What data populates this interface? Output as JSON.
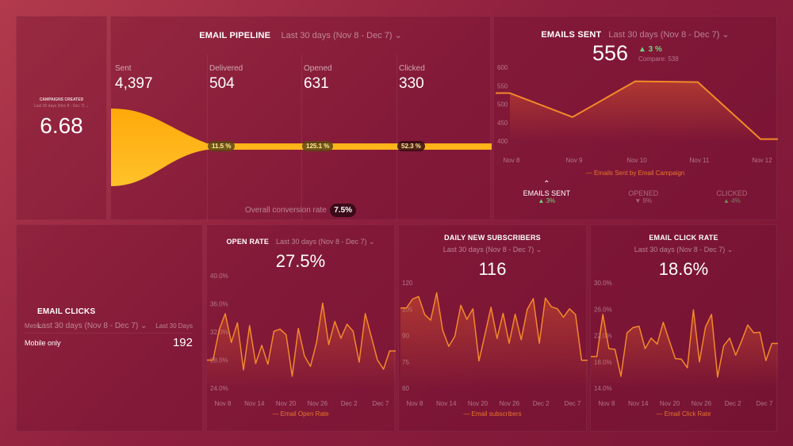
{
  "campaigns": {
    "title": "CAMPAIGNS CREATED",
    "range": "Last 30 days (Nov 8 - Dec 7) ⌄",
    "value": "6.68"
  },
  "pipeline": {
    "title": "EMAIL PIPELINE",
    "range": "Last 30 days (Nov 8 - Dec 7) ⌄",
    "stages": [
      {
        "label": "Sent",
        "value": "4,397"
      },
      {
        "label": "Delivered",
        "value": "504",
        "rate": "11.5 %"
      },
      {
        "label": "Opened",
        "value": "631",
        "rate": "125.1 %"
      },
      {
        "label": "Clicked",
        "value": "330",
        "rate": "52.3 %"
      }
    ],
    "overall_label": "Overall conversion rate",
    "overall_value": "7.5%"
  },
  "emails_sent": {
    "title": "EMAILS SENT",
    "range": "Last 30 days (Nov 8 - Dec 7) ⌄",
    "value": "556",
    "change": "▲ 3 %",
    "compare": "Compare: 538",
    "legend": "Emails Sent by Email Campaign",
    "tabs": [
      {
        "label": "EMAILS SENT",
        "change": "▲ 3%"
      },
      {
        "label": "OPENED",
        "change": "▼ 9%"
      },
      {
        "label": "CLICKED",
        "change": "▲ 4%"
      }
    ]
  },
  "email_clicks": {
    "title": "EMAIL CLICKS",
    "range": "Last 30 days (Nov 8 - Dec 7) ⌄",
    "col1": "Metric",
    "col2": "Last 30 Days",
    "rows": [
      {
        "metric": "Mobile only",
        "value": "192"
      }
    ]
  },
  "open_rate": {
    "title": "OPEN RATE",
    "range": "Last 30 days (Nov 8 - Dec 7) ⌄",
    "value": "27.5%",
    "legend": "Email Open Rate"
  },
  "subscribers": {
    "title": "DAILY NEW SUBSCRIBERS",
    "range": "Last 30 days (Nov 8 - Dec 7) ⌄",
    "value": "116",
    "legend": "Email subscribers"
  },
  "click_rate": {
    "title": "EMAIL CLICK RATE",
    "range": "Last 30 days (Nov 8 - Dec 7) ⌄",
    "value": "18.6%",
    "legend": "Email Click Rate"
  },
  "colors": {
    "line": "#f2892a",
    "funnel": "#ffb514",
    "up": "#6fd37a"
  },
  "chart_data": [
    {
      "type": "line",
      "title": "EMAILS SENT",
      "x": [
        "Nov 8",
        "Nov 9",
        "Nov 10",
        "Nov 11",
        "Nov 12"
      ],
      "values": [
        530,
        465,
        562,
        560,
        405
      ],
      "yticks": [
        "600",
        "550",
        "500",
        "450",
        "400"
      ],
      "ylim": [
        400,
        600
      ]
    },
    {
      "type": "line",
      "title": "OPEN RATE",
      "xticks": [
        "Nov 8",
        "Nov 14",
        "Nov 20",
        "Nov 26",
        "Dec 2",
        "Dec 7"
      ],
      "yticks": [
        "40.0%",
        "36.0%",
        "32.0%",
        "28.0%",
        "24.0%"
      ],
      "ylim": [
        24,
        40
      ],
      "values": [
        28,
        28,
        32.3,
        34.6,
        30.5,
        33.3,
        26.6,
        32.9,
        27.5,
        30.1,
        27.4,
        32.1,
        32.4,
        31.6,
        25.7,
        32.5,
        28.6,
        27.1,
        30.5,
        36.1,
        30.2,
        33.5,
        31.1,
        33.1,
        32.1,
        27.7,
        34.6,
        31.3,
        28,
        26.7,
        29.3,
        29.3
      ]
    },
    {
      "type": "line",
      "title": "DAILY NEW SUBSCRIBERS",
      "xticks": [
        "Nov 8",
        "Nov 14",
        "Nov 20",
        "Nov 26",
        "Dec 2",
        "Dec 7"
      ],
      "yticks": [
        "120",
        "105",
        "90",
        "75",
        "60"
      ],
      "ylim": [
        60,
        120
      ],
      "values": [
        105.7,
        105.7,
        110.7,
        112.2,
        102,
        98.7,
        114.3,
        92.9,
        83.8,
        89.5,
        107.2,
        99.2,
        105.2,
        75.5,
        90.6,
        106.1,
        88.3,
        102.6,
        85.6,
        102.1,
        87.6,
        104.9,
        111,
        85.6,
        111.3,
        106.4,
        105.2,
        100.4,
        105.2,
        101.9,
        75.9,
        75.9
      ]
    },
    {
      "type": "line",
      "title": "EMAIL CLICK RATE",
      "xticks": [
        "Nov 8",
        "Nov 14",
        "Nov 20",
        "Nov 26",
        "Dec 2",
        "Dec 7"
      ],
      "yticks": [
        "30.0%",
        "26.0%",
        "22.0%",
        "18.0%",
        "14.0%"
      ],
      "ylim": [
        14,
        30
      ],
      "values": [
        18.8,
        18.8,
        25.2,
        20,
        19.9,
        15.8,
        22.4,
        23.2,
        23.4,
        20,
        21.6,
        20.7,
        24,
        21.2,
        18.5,
        18.4,
        17.1,
        25.9,
        18,
        23.3,
        25.2,
        15.7,
        20.4,
        21.6,
        19,
        21.2,
        23.6,
        22.4,
        22.5,
        18.2,
        20.8,
        20.8
      ]
    }
  ]
}
